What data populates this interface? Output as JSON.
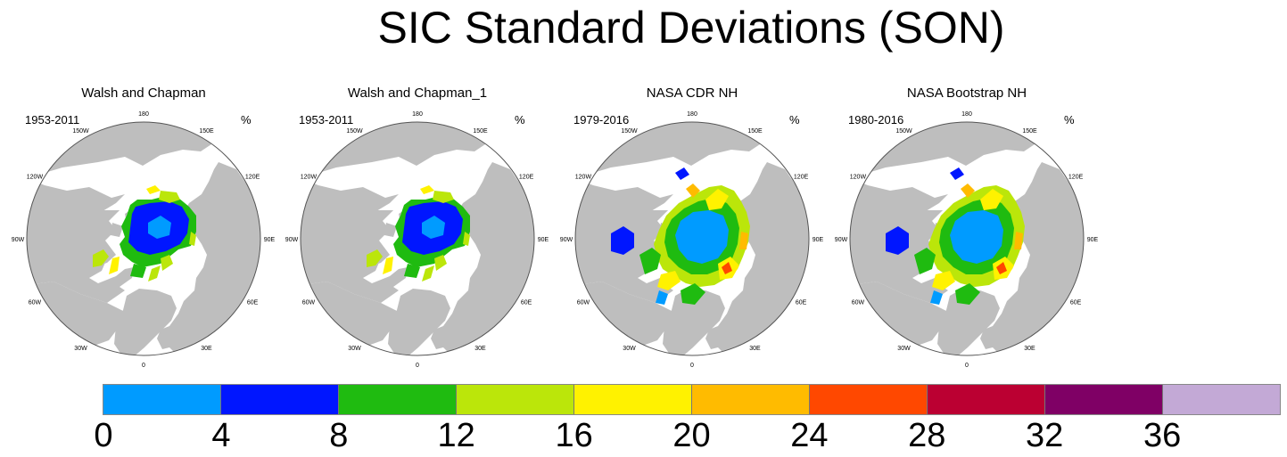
{
  "title": "SIC Standard Deviations (SON)",
  "panels": [
    {
      "title": "Walsh and Chapman",
      "period": "1953-2011",
      "unit": "%",
      "variant": "wc"
    },
    {
      "title": "Walsh and Chapman_1",
      "period": "1953-2011",
      "unit": "%",
      "variant": "wc"
    },
    {
      "title": "NASA CDR NH",
      "period": "1979-2016",
      "unit": "%",
      "variant": "nasa"
    },
    {
      "title": "NASA Bootstrap NH",
      "period": "1980-2016",
      "unit": "%",
      "variant": "nasa"
    }
  ],
  "longitude_labels": [
    "180",
    "150E",
    "120E",
    "90E",
    "60E",
    "30E",
    "0",
    "30W",
    "60W",
    "90W",
    "120W",
    "150W"
  ],
  "colorbar": {
    "colors": [
      "#009bff",
      "#0016ff",
      "#1fbb10",
      "#bbe60a",
      "#fff200",
      "#ffbb00",
      "#ff4800",
      "#bb0032",
      "#7f0065",
      "#c3a9d6"
    ],
    "labels": [
      "0",
      "4",
      "8",
      "12",
      "16",
      "20",
      "24",
      "28",
      "32",
      "36"
    ]
  },
  "map_colors": {
    "land": "#bebebe",
    "ocean": "#ffffff"
  }
}
